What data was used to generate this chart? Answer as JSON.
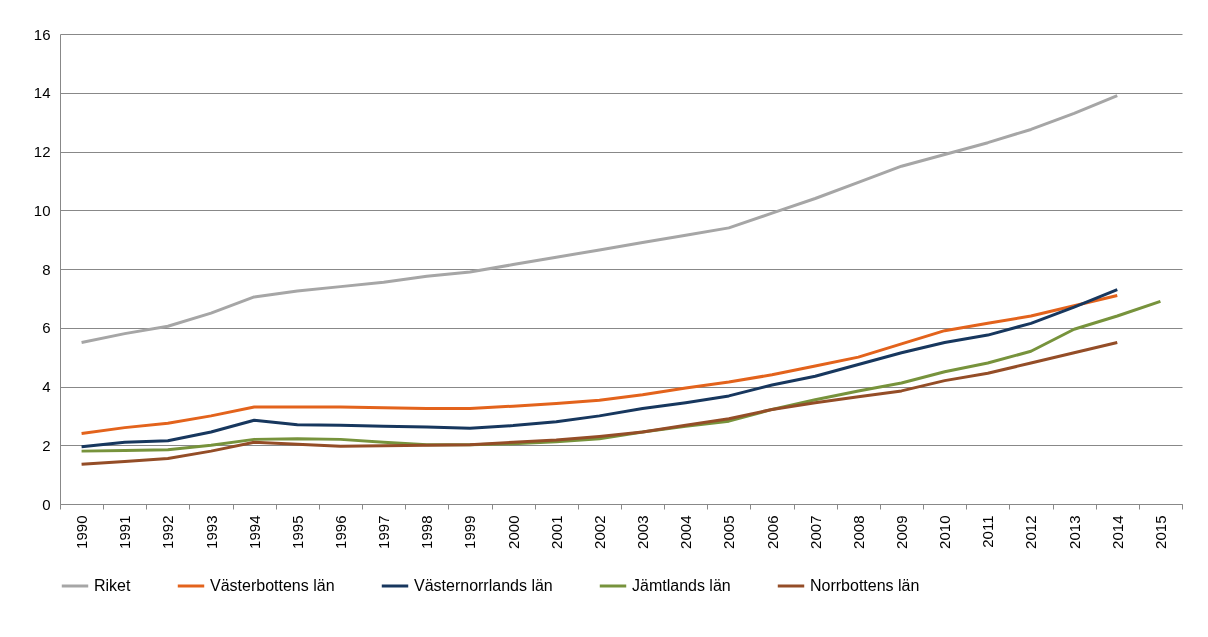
{
  "chart_data": {
    "type": "line",
    "categories": [
      "1990",
      "1991",
      "1992",
      "1993",
      "1994",
      "1995",
      "1996",
      "1997",
      "1998",
      "1999",
      "2000",
      "2001",
      "2002",
      "2003",
      "2004",
      "2005",
      "2006",
      "2007",
      "2008",
      "2009",
      "2010",
      "2011",
      "2012",
      "2013",
      "2014",
      "2015"
    ],
    "series": [
      {
        "name": "Riket",
        "color": "#a6a6a6",
        "values": [
          5.5,
          5.8,
          6.05,
          6.5,
          7.05,
          7.25,
          7.4,
          7.55,
          7.75,
          7.9,
          8.15,
          8.4,
          8.65,
          8.9,
          9.15,
          9.4,
          9.9,
          10.4,
          10.95,
          11.5,
          11.9,
          12.3,
          12.75,
          13.3,
          13.9,
          null
        ]
      },
      {
        "name": "Västerbottens län",
        "color": "#e3631c",
        "values": [
          2.4,
          2.6,
          2.75,
          3.0,
          3.3,
          3.3,
          3.3,
          3.28,
          3.25,
          3.25,
          3.33,
          3.42,
          3.53,
          3.72,
          3.95,
          4.15,
          4.4,
          4.7,
          5.0,
          5.45,
          5.9,
          6.15,
          6.4,
          6.75,
          7.1,
          null
        ]
      },
      {
        "name": "Västernorrlands län",
        "color": "#17375e",
        "values": [
          1.95,
          2.1,
          2.15,
          2.45,
          2.85,
          2.7,
          2.68,
          2.65,
          2.62,
          2.58,
          2.67,
          2.8,
          3.0,
          3.25,
          3.45,
          3.68,
          4.05,
          4.35,
          4.75,
          5.15,
          5.5,
          5.75,
          6.15,
          6.7,
          7.3,
          null
        ]
      },
      {
        "name": "Jämtlands län",
        "color": "#77933c",
        "values": [
          1.8,
          1.82,
          1.85,
          2.0,
          2.2,
          2.22,
          2.2,
          2.1,
          2.02,
          2.02,
          2.05,
          2.12,
          2.22,
          2.45,
          2.65,
          2.82,
          3.22,
          3.55,
          3.85,
          4.12,
          4.5,
          4.8,
          5.2,
          5.95,
          6.4,
          6.9
        ]
      },
      {
        "name": "Norrbottens län",
        "color": "#944d27",
        "values": [
          1.35,
          1.45,
          1.55,
          1.8,
          2.1,
          2.03,
          1.97,
          1.98,
          2.0,
          2.02,
          2.1,
          2.18,
          2.3,
          2.45,
          2.68,
          2.9,
          3.22,
          3.45,
          3.65,
          3.85,
          4.2,
          4.45,
          4.8,
          5.15,
          5.5,
          null
        ]
      }
    ],
    "ylim": [
      0,
      16
    ],
    "yticks": [
      0,
      2,
      4,
      6,
      8,
      10,
      12,
      14,
      16
    ],
    "grid": "y",
    "legend": "bottom",
    "marker": "none",
    "line_style": "solid"
  }
}
